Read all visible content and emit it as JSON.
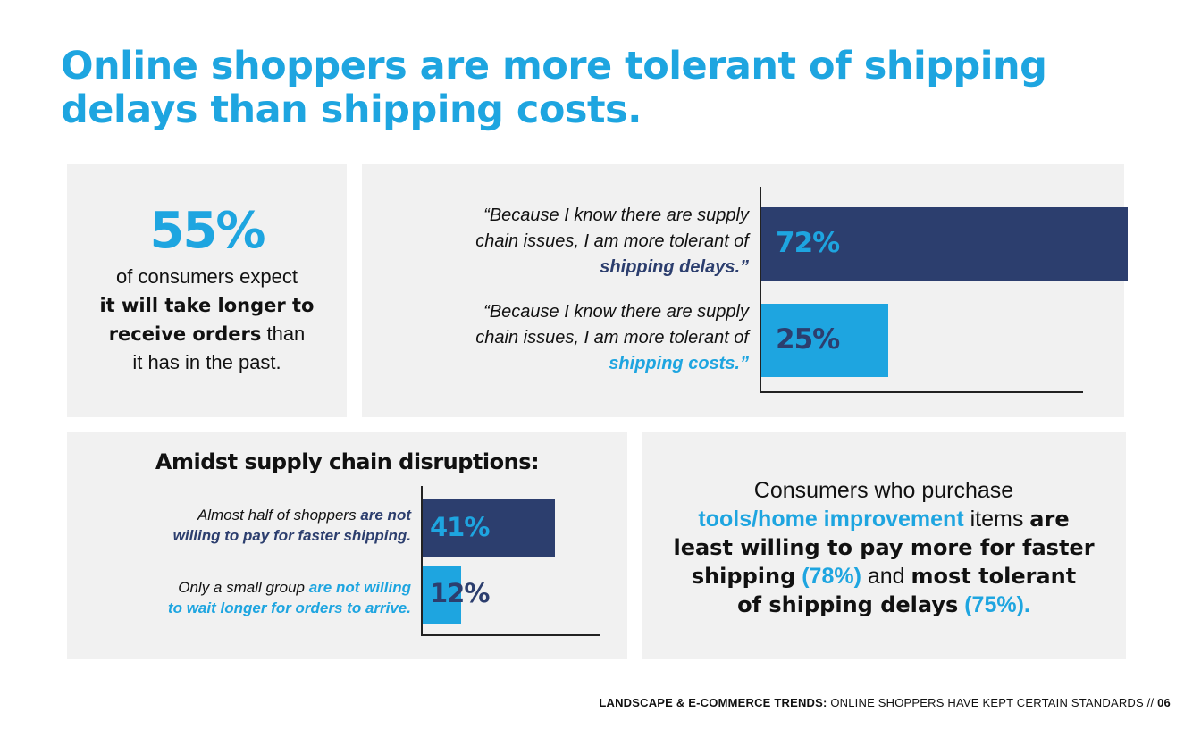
{
  "page": {
    "title_line1": "Online shoppers are more tolerant of shipping",
    "title_line2": "delays than shipping costs."
  },
  "stat_panel": {
    "value": "55%",
    "line1": "of consumers expect",
    "bold1": "it will take longer to",
    "bold2": "receive orders",
    "tail2": " than",
    "line4": "it has in the past."
  },
  "tolerance_chart": {
    "q1_l1": "“Because I know there are supply",
    "q1_l2": "chain issues, I am more tolerant of",
    "q1_em": "shipping delays.”",
    "q2_l1": "“Because I know there are supply",
    "q2_l2": "chain issues, I am more tolerant of",
    "q2_em": "shipping costs.”",
    "label1": "72%",
    "label2": "25%"
  },
  "disruption_chart": {
    "heading": "Amidst supply chain disruptions:",
    "s1_pre": "Almost half of shoppers ",
    "s1_em1": "are not",
    "s1_em2": "willing to pay for faster shipping.",
    "s2_pre": "Only a small group ",
    "s2_em1": "are not willing",
    "s2_em2": "to wait longer for orders to arrive.",
    "label1": "41%",
    "label2": "12%"
  },
  "tools_panel": {
    "l1": "Consumers who purchase",
    "c1": "tools/home improvement",
    "t1": " items ",
    "b1": "are",
    "b2": "least willing to pay more for faster",
    "b3": "shipping",
    "c2": " (78%)",
    "t2": " and ",
    "b4": "most tolerant",
    "b5": "of shipping delays",
    "c3": " (75%)."
  },
  "footer": {
    "bold": "LANDSCAPE & E-COMMERCE TRENDS:",
    "rest": " ONLINE SHOPPERS HAVE KEPT CERTAIN STANDARDS // ",
    "page": "06"
  },
  "colors": {
    "accent": "#1ea5e0",
    "navy": "#2c3e6e",
    "panel": "#f1f1f1"
  },
  "chart_data": [
    {
      "type": "bar",
      "orientation": "horizontal",
      "categories": [
        "“Because I know there are supply chain issues, I am more tolerant of shipping delays.”",
        "“Because I know there are supply chain issues, I am more tolerant of shipping costs.”"
      ],
      "values": [
        72,
        25
      ],
      "data_labels": [
        "72%",
        "25%"
      ],
      "colors": [
        "#2c3e6e",
        "#1ea5e0"
      ],
      "xlim": [
        0,
        80
      ],
      "grid": false
    },
    {
      "type": "bar",
      "orientation": "horizontal",
      "title": "Amidst supply chain disruptions:",
      "categories": [
        "Almost half of shoppers are not willing to pay for faster shipping.",
        "Only a small group are not willing to wait longer for orders to arrive."
      ],
      "values": [
        41,
        12
      ],
      "data_labels": [
        "41%",
        "12%"
      ],
      "colors": [
        "#2c3e6e",
        "#1ea5e0"
      ],
      "xlim": [
        0,
        55
      ],
      "grid": false
    }
  ]
}
